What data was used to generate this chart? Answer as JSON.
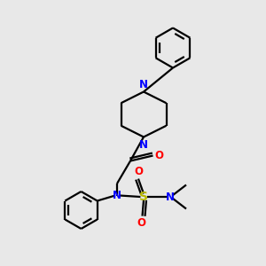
{
  "bg_color": "#e8e8e8",
  "atom_colors": {
    "N": "#0000ff",
    "O": "#ff0000",
    "S": "#b8b800",
    "C": "#000000"
  },
  "bond_color": "#000000",
  "line_width": 1.6,
  "figsize": [
    3.0,
    3.0
  ],
  "dpi": 100,
  "xlim": [
    0,
    10
  ],
  "ylim": [
    0,
    10
  ]
}
